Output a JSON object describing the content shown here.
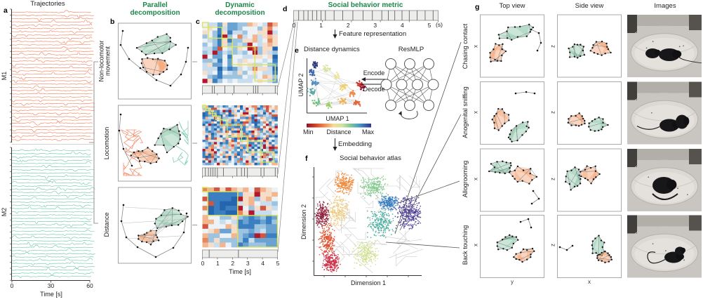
{
  "letters": {
    "a": "a",
    "b": "b",
    "c": "c",
    "d": "d",
    "e": "e",
    "f": "f",
    "g": "g"
  },
  "a": {
    "title": "Trajectories",
    "row_labels": [
      "M1",
      "M2"
    ],
    "x_ticks": [
      "0",
      "30",
      "60"
    ],
    "x_label": "Time [s]"
  },
  "b": {
    "title": "Parallel decomposition",
    "rows": [
      "Non-locomotor movement",
      "Locomotion",
      "Distance"
    ]
  },
  "c": {
    "title": "Dynamic decomposition",
    "x_ticks": [
      "0",
      "1",
      "2",
      "3",
      "4",
      "5"
    ],
    "x_label": "Time [s]"
  },
  "d": {
    "title": "Social behavior metric",
    "x_ticks": [
      "0",
      "1",
      "2",
      "3",
      "4",
      "5"
    ],
    "x_unit": "(s)",
    "annotation": "Feature representation"
  },
  "e": {
    "title": "Distance dynamics",
    "x_label": "UMAP 1",
    "y_label": "UMAP 2",
    "colorbar_min": "Min",
    "colorbar_label": "Distance",
    "colorbar_max": "Max",
    "annotation": "Embedding",
    "network_title": "ResMLP",
    "encode_label": "Encode",
    "decode_label": "Decode"
  },
  "f": {
    "title": "Social behavior atlas",
    "x_label": "Dimension 1",
    "y_label": "Dimension 2"
  },
  "g": {
    "col_headers": [
      "Top view",
      "Side view",
      "Images"
    ],
    "rows": [
      {
        "label": "Chasing contact",
        "top_axis": "x",
        "side_axis": "z"
      },
      {
        "label": "Anogenital sniffing",
        "top_axis": "x",
        "side_axis": "z"
      },
      {
        "label": "Allogrooming",
        "top_axis": "x",
        "side_axis": "z"
      },
      {
        "label": "Back touching",
        "top_axis": "x",
        "side_axis": "z"
      }
    ],
    "top_x_label": "y",
    "side_x_label": "x"
  },
  "colors": {
    "accent_green": "#1d8649",
    "m1_orange": "#f0815c",
    "m2_green": "#6ec6a5",
    "skel_orange": "rgba(243,160,110,0.45)",
    "skel_green": "rgba(140,200,170,0.45)",
    "box_yellow": "#dde35e",
    "heat_palette": [
      "#1a4f9c",
      "#2565ae",
      "#3b7fc0",
      "#6aa3d1",
      "#9cc3e0",
      "#c8dded",
      "#ecf2f5",
      "#f6ddc8",
      "#f2b58e",
      "#e5885f",
      "#d25540",
      "#b2182b"
    ],
    "atlas_clusters": [
      "#ef8b3e",
      "#edc87c",
      "#8e1f3c",
      "#dd5230",
      "#cc2f44",
      "#cfe08f",
      "#86c98f",
      "#46ab9b",
      "#3c7fc0",
      "#4f3f97"
    ]
  }
}
